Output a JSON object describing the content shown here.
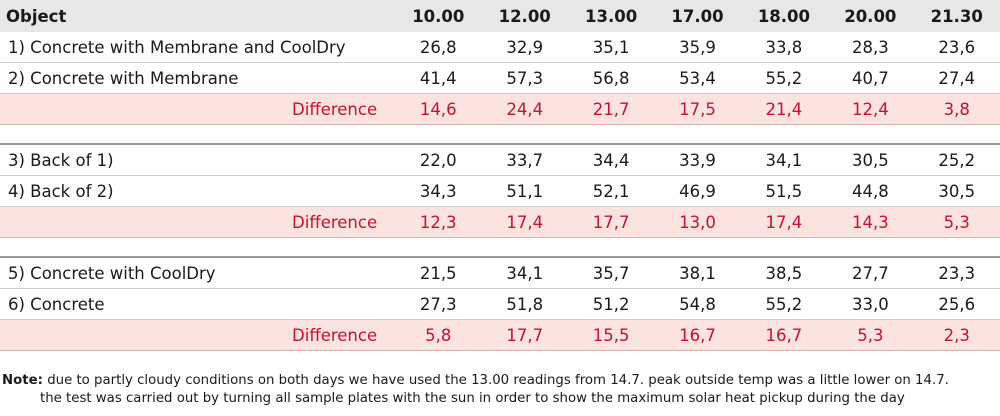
{
  "table": {
    "header": [
      "Object",
      "10.00",
      "12.00",
      "13.00",
      "17.00",
      "18.00",
      "20.00",
      "21.30"
    ],
    "groups": [
      {
        "rows": [
          {
            "label": "1)  Concrete with Membrane and CoolDry",
            "values": [
              "26,8",
              "32,9",
              "35,1",
              "35,9",
              "33,8",
              "28,3",
              "23,6"
            ]
          },
          {
            "label": "2)  Concrete with Membrane",
            "values": [
              "41,4",
              "57,3",
              "56,8",
              "53,4",
              "55,2",
              "40,7",
              "27,4"
            ]
          }
        ],
        "difference": {
          "label": "Difference",
          "values": [
            "14,6",
            "24,4",
            "21,7",
            "17,5",
            "21,4",
            "12,4",
            "3,8"
          ]
        }
      },
      {
        "rows": [
          {
            "label": "3)  Back of 1)",
            "values": [
              "22,0",
              "33,7",
              "34,4",
              "33,9",
              "34,1",
              "30,5",
              "25,2"
            ]
          },
          {
            "label": "4)  Back of 2)",
            "values": [
              "34,3",
              "51,1",
              "52,1",
              "46,9",
              "51,5",
              "44,8",
              "30,5"
            ]
          }
        ],
        "difference": {
          "label": "Difference",
          "values": [
            "12,3",
            "17,4",
            "17,7",
            "13,0",
            "17,4",
            "14,3",
            "5,3"
          ]
        }
      },
      {
        "rows": [
          {
            "label": "5)  Concrete with CoolDry",
            "values": [
              "21,5",
              "34,1",
              "35,7",
              "38,1",
              "38,5",
              "27,7",
              "23,3"
            ]
          },
          {
            "label": "6)  Concrete",
            "values": [
              "27,3",
              "51,8",
              "51,2",
              "54,8",
              "55,2",
              "33,0",
              "25,6"
            ]
          }
        ],
        "difference": {
          "label": "Difference",
          "values": [
            "5,8",
            "17,7",
            "15,5",
            "16,7",
            "16,7",
            "5,3",
            "2,3"
          ]
        }
      }
    ]
  },
  "note": {
    "label": "Note:",
    "line1": " due to partly cloudy conditions on both days we have used the 13.00 readings from 14.7. peak outside temp was a little lower on 14.7.",
    "line2": "the test was carried out by turning all sample plates with the sun in order to show the maximum solar heat pickup during the day"
  }
}
